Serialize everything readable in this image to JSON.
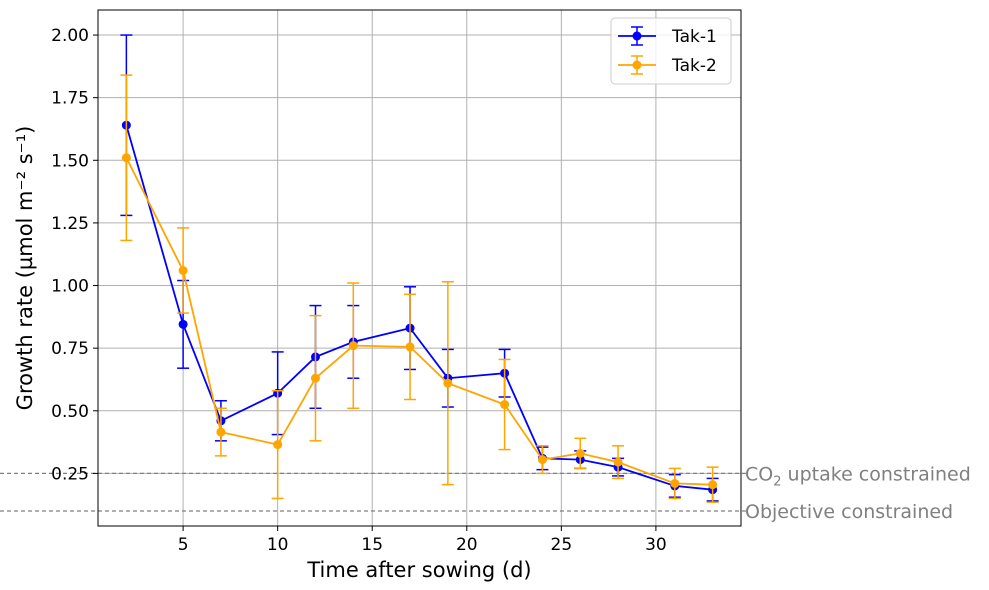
{
  "chart_data": {
    "type": "line",
    "xlabel": "Time after sowing (d)",
    "ylabel": "Growth rate (µmol m⁻² s⁻¹)",
    "xlim": [
      0.5,
      34.5
    ],
    "ylim": [
      0.04,
      2.1
    ],
    "x_ticks": [
      5,
      10,
      15,
      20,
      25,
      30
    ],
    "y_ticks": [
      0.25,
      0.5,
      0.75,
      1.0,
      1.25,
      1.5,
      1.75,
      2.0
    ],
    "y_tick_labels": [
      "0.25",
      "0.50",
      "0.75",
      "1.00",
      "1.25",
      "1.50",
      "1.75",
      "2.00"
    ],
    "grid": true,
    "legend_position": "top-right",
    "series": [
      {
        "name": "Tak-1",
        "color": "#0000ff",
        "x": [
          2,
          5,
          7,
          10,
          12,
          14,
          17,
          19,
          22,
          24,
          26,
          28,
          31,
          33
        ],
        "y": [
          1.64,
          0.845,
          0.46,
          0.57,
          0.715,
          0.775,
          0.83,
          0.63,
          0.65,
          0.31,
          0.305,
          0.275,
          0.2,
          0.185
        ],
        "err": [
          0.36,
          0.175,
          0.08,
          0.165,
          0.205,
          0.145,
          0.165,
          0.115,
          0.095,
          0.045,
          0.035,
          0.035,
          0.045,
          0.045
        ]
      },
      {
        "name": "Tak-2",
        "color": "#ffa500",
        "x": [
          2,
          5,
          7,
          10,
          12,
          14,
          17,
          19,
          22,
          24,
          26,
          28,
          31,
          33
        ],
        "y": [
          1.51,
          1.06,
          0.415,
          0.365,
          0.63,
          0.76,
          0.755,
          0.61,
          0.525,
          0.305,
          0.33,
          0.295,
          0.21,
          0.205
        ],
        "err": [
          0.33,
          0.17,
          0.095,
          0.215,
          0.25,
          0.25,
          0.21,
          0.405,
          0.18,
          0.055,
          0.06,
          0.065,
          0.06,
          0.07
        ]
      }
    ],
    "reference_lines": [
      {
        "y": 0.25,
        "label_main": "CO",
        "label_sub": "2",
        "label_rest": " uptake constrained",
        "color": "#808080",
        "style": "dashed"
      },
      {
        "y": 0.1,
        "label_main": "Objective constrained",
        "label_sub": "",
        "label_rest": "",
        "color": "#808080",
        "style": "dashed"
      }
    ]
  }
}
